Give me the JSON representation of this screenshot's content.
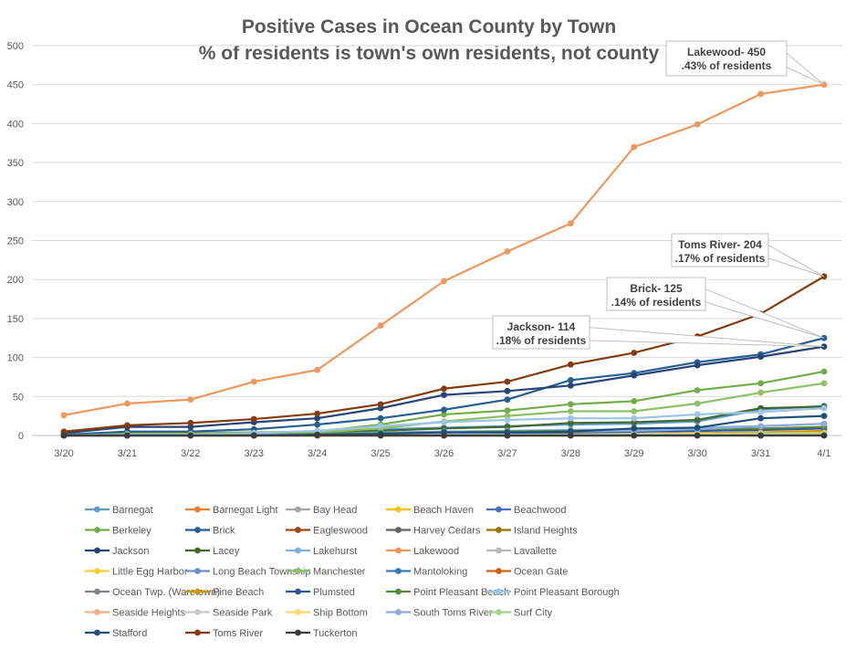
{
  "chart_data": {
    "type": "line",
    "title": "Positive Cases in Ocean County by Town",
    "subtitle": "% of residents is town's own residents, not county",
    "categories": [
      "3/20",
      "3/21",
      "3/22",
      "3/23",
      "3/24",
      "3/25",
      "3/26",
      "3/27",
      "3/28",
      "3/29",
      "3/30",
      "3/31",
      "4/1"
    ],
    "ylim": [
      0,
      500
    ],
    "yticks": [
      0,
      50,
      100,
      150,
      200,
      250,
      300,
      350,
      400,
      450,
      500
    ],
    "grid": true,
    "legend_position": "bottom",
    "series": [
      {
        "name": "Barnegat",
        "color": "#5b9bd5",
        "values": [
          0,
          1,
          1,
          2,
          4,
          8,
          10,
          12,
          14,
          15,
          18,
          33,
          38
        ]
      },
      {
        "name": "Barnegat Light",
        "color": "#ed7d31",
        "values": [
          0,
          0,
          0,
          0,
          0,
          0,
          0,
          0,
          0,
          0,
          0,
          0,
          1
        ]
      },
      {
        "name": "Bay Head",
        "color": "#a5a5a5",
        "values": [
          0,
          0,
          0,
          0,
          0,
          0,
          0,
          1,
          1,
          1,
          1,
          2,
          2
        ]
      },
      {
        "name": "Beach Haven",
        "color": "#ffc000",
        "values": [
          0,
          0,
          0,
          0,
          0,
          0,
          1,
          1,
          1,
          2,
          3,
          4,
          5
        ]
      },
      {
        "name": "Beachwood",
        "color": "#4472c4",
        "values": [
          0,
          0,
          0,
          1,
          1,
          2,
          3,
          3,
          4,
          5,
          6,
          8,
          10
        ]
      },
      {
        "name": "Berkeley",
        "color": "#70ad47",
        "values": [
          0,
          3,
          3,
          4,
          5,
          14,
          27,
          32,
          40,
          44,
          58,
          67,
          82
        ]
      },
      {
        "name": "Brick",
        "color": "#255e91",
        "values": [
          1,
          5,
          5,
          8,
          14,
          22,
          33,
          46,
          71,
          80,
          94,
          104,
          125
        ]
      },
      {
        "name": "Eagleswood",
        "color": "#9e480e",
        "values": [
          0,
          0,
          0,
          0,
          0,
          0,
          0,
          0,
          0,
          0,
          1,
          1,
          1
        ]
      },
      {
        "name": "Harvey Cedars",
        "color": "#636363",
        "values": [
          0,
          0,
          0,
          0,
          0,
          0,
          0,
          0,
          0,
          0,
          0,
          0,
          0
        ]
      },
      {
        "name": "Island Heights",
        "color": "#997300",
        "values": [
          0,
          0,
          0,
          0,
          0,
          1,
          1,
          1,
          1,
          2,
          2,
          2,
          3
        ]
      },
      {
        "name": "Jackson",
        "color": "#264478",
        "values": [
          3,
          11,
          11,
          17,
          22,
          35,
          52,
          57,
          64,
          77,
          90,
          101,
          114
        ]
      },
      {
        "name": "Lacey",
        "color": "#43682b",
        "values": [
          0,
          1,
          1,
          2,
          3,
          6,
          9,
          11,
          16,
          17,
          20,
          35,
          37
        ]
      },
      {
        "name": "Lakehurst",
        "color": "#7cafdd",
        "values": [
          0,
          0,
          1,
          1,
          2,
          4,
          5,
          6,
          7,
          8,
          10,
          12,
          15
        ]
      },
      {
        "name": "Lakewood",
        "color": "#f1975a",
        "values": [
          26,
          41,
          46,
          69,
          84,
          141,
          198,
          236,
          272,
          370,
          399,
          438,
          450
        ]
      },
      {
        "name": "Lavallette",
        "color": "#b7b7b7",
        "values": [
          0,
          0,
          0,
          0,
          0,
          1,
          1,
          1,
          2,
          2,
          3,
          3,
          4
        ]
      },
      {
        "name": "Little Egg Harbor",
        "color": "#ffcd33",
        "values": [
          0,
          0,
          0,
          1,
          1,
          2,
          3,
          4,
          5,
          6,
          8,
          9,
          10
        ]
      },
      {
        "name": "Long Beach Township",
        "color": "#698ed0",
        "values": [
          0,
          0,
          0,
          0,
          0,
          1,
          1,
          1,
          2,
          2,
          3,
          3,
          4
        ]
      },
      {
        "name": "Manchester",
        "color": "#8cc168",
        "values": [
          0,
          2,
          2,
          3,
          4,
          9,
          18,
          25,
          31,
          31,
          41,
          55,
          67
        ]
      },
      {
        "name": "Mantoloking",
        "color": "#327dc2",
        "values": [
          0,
          0,
          0,
          0,
          0,
          0,
          0,
          0,
          1,
          1,
          1,
          1,
          1
        ]
      },
      {
        "name": "Ocean Gate",
        "color": "#d26012",
        "values": [
          0,
          0,
          0,
          0,
          0,
          0,
          0,
          1,
          1,
          1,
          2,
          2,
          3
        ]
      },
      {
        "name": "Ocean Twp. (Waretown)",
        "color": "#848484",
        "values": [
          0,
          0,
          0,
          0,
          0,
          0,
          1,
          1,
          1,
          2,
          2,
          3,
          4
        ]
      },
      {
        "name": "Pine Beach",
        "color": "#cc9a00",
        "values": [
          0,
          0,
          0,
          0,
          0,
          0,
          1,
          1,
          2,
          2,
          3,
          4,
          6
        ]
      },
      {
        "name": "Plumsted",
        "color": "#2e5597",
        "values": [
          0,
          0,
          0,
          1,
          1,
          2,
          3,
          3,
          4,
          5,
          6,
          7,
          9
        ]
      },
      {
        "name": "Point Pleasant Beach",
        "color": "#5a8a39",
        "values": [
          0,
          1,
          1,
          1,
          2,
          3,
          4,
          5,
          6,
          7,
          8,
          9,
          11
        ]
      },
      {
        "name": "Point Pleasant Borough",
        "color": "#9dc3e6",
        "values": [
          0,
          1,
          1,
          3,
          6,
          12,
          17,
          20,
          22,
          22,
          27,
          30,
          35
        ]
      },
      {
        "name": "Seaside Heights",
        "color": "#f4b183",
        "values": [
          0,
          0,
          0,
          0,
          0,
          0,
          1,
          1,
          1,
          2,
          2,
          3,
          3
        ]
      },
      {
        "name": "Seaside Park",
        "color": "#c9c9c9",
        "values": [
          0,
          0,
          0,
          0,
          0,
          1,
          1,
          1,
          1,
          2,
          2,
          2,
          3
        ]
      },
      {
        "name": "Ship Bottom",
        "color": "#ffd966",
        "values": [
          0,
          0,
          0,
          0,
          0,
          0,
          0,
          1,
          1,
          1,
          2,
          2,
          3
        ]
      },
      {
        "name": "South Toms River",
        "color": "#8faadc",
        "values": [
          0,
          0,
          0,
          1,
          1,
          2,
          3,
          4,
          5,
          6,
          8,
          12,
          15
        ]
      },
      {
        "name": "Surf City",
        "color": "#a9d18e",
        "values": [
          0,
          0,
          0,
          0,
          0,
          0,
          0,
          1,
          1,
          1,
          1,
          2,
          2
        ]
      },
      {
        "name": "Stafford",
        "color": "#1f4e79",
        "values": [
          0,
          0,
          0,
          0,
          1,
          2,
          4,
          4,
          5,
          9,
          10,
          22,
          25
        ]
      },
      {
        "name": "Toms River",
        "color": "#843c0c",
        "values": [
          5,
          13,
          16,
          21,
          28,
          40,
          60,
          69,
          91,
          106,
          127,
          156,
          204
        ]
      },
      {
        "name": "Tuckerton",
        "color": "#3b3b3b",
        "values": [
          0,
          0,
          0,
          0,
          0,
          0,
          0,
          0,
          0,
          0,
          0,
          0,
          0
        ]
      }
    ],
    "annotations": [
      {
        "series": "Lakewood",
        "line1": "Lakewood- 450",
        "line2": ".43% of residents"
      },
      {
        "series": "Toms River",
        "line1": "Toms River- 204",
        "line2": ".17% of residents"
      },
      {
        "series": "Brick",
        "line1": "Brick- 125",
        "line2": ".14% of residents"
      },
      {
        "series": "Jackson",
        "line1": "Jackson- 114",
        "line2": ".18% of residents"
      }
    ]
  }
}
